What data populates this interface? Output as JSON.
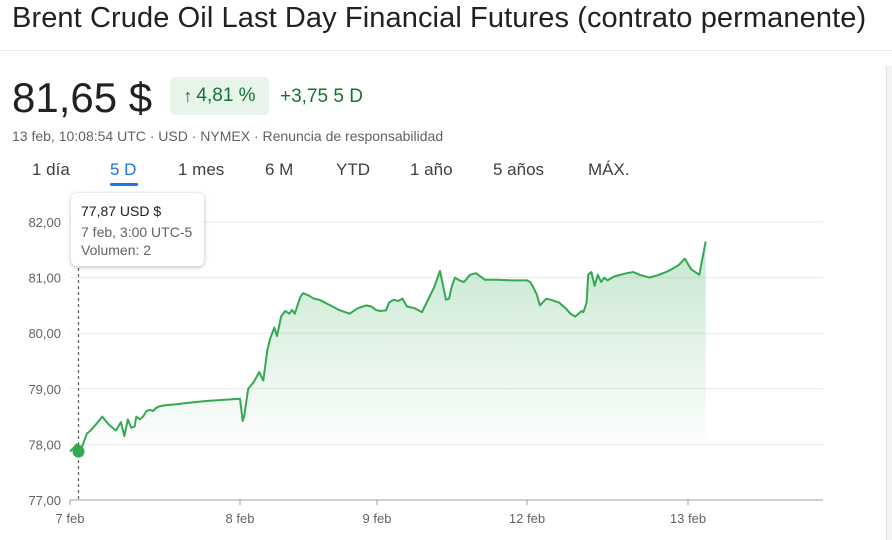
{
  "header": {
    "title": "Brent Crude Oil Last Day Financial Futures (contrato permanente)"
  },
  "quote": {
    "price": "81,65 $",
    "change_pct": "4,81 %",
    "change_abs": "+3,75 5 D",
    "meta": "13 feb, 10:08:54 UTC · USD · NYMEX · Renuncia de responsabilidad",
    "up_color": "#137333"
  },
  "tabs": [
    {
      "label": "1 día"
    },
    {
      "label": "5 D",
      "active": true
    },
    {
      "label": "1 mes"
    },
    {
      "label": "6 M"
    },
    {
      "label": "YTD"
    },
    {
      "label": "1 año"
    },
    {
      "label": "5 años"
    },
    {
      "label": "MÁX."
    }
  ],
  "tooltip": {
    "price": "77,87 USD $",
    "time": "7 feb, 3:00 UTC-5",
    "volume": "Volumen: 2"
  },
  "chart_data": {
    "type": "area",
    "ylim": [
      77,
      82
    ],
    "y_ticks": [
      "82,00",
      "81,00",
      "80,00",
      "79,00",
      "78,00",
      "77,00"
    ],
    "y_tick_values": [
      82,
      81,
      80,
      79,
      78,
      77
    ],
    "x_ticks": [
      "7 feb",
      "8 feb",
      "9 feb",
      "12 feb",
      "13 feb"
    ],
    "x_tick_positions": [
      0,
      1,
      2,
      3,
      4
    ],
    "x_max": 4.85,
    "line_color": "#34a853",
    "grid": true,
    "hover_point": {
      "x": 0.05,
      "y": 77.87
    },
    "x": [
      0,
      0.04,
      0.07,
      0.1,
      0.11,
      0.13,
      0.15,
      0.19,
      0.23,
      0.27,
      0.3,
      0.32,
      0.34,
      0.36,
      0.38,
      0.39,
      0.41,
      0.43,
      0.45,
      0.47,
      0.49,
      0.5,
      0.52,
      0.55,
      0.58,
      0.62,
      0.7,
      0.8,
      1.0,
      1.02,
      1.03,
      1.06,
      1.1,
      1.14,
      1.17,
      1.2,
      1.22,
      1.25,
      1.27,
      1.3,
      1.33,
      1.36,
      1.38,
      1.4,
      1.42,
      1.44,
      1.46,
      1.5,
      1.54,
      1.58,
      1.62,
      1.66,
      1.72,
      1.8,
      1.86,
      1.92,
      1.96,
      1.99,
      2.02,
      2.06,
      2.08,
      2.11,
      2.14,
      2.17,
      2.2,
      2.25,
      2.3,
      2.34,
      2.38,
      2.42,
      2.46,
      2.48,
      2.5,
      2.52,
      2.55,
      2.58,
      2.62,
      2.66,
      2.72,
      2.8,
      2.9,
      3.0,
      3.02,
      3.04,
      3.06,
      3.08,
      3.12,
      3.15,
      3.2,
      3.24,
      3.27,
      3.3,
      3.32,
      3.34,
      3.35,
      3.37,
      3.38,
      3.4,
      3.42,
      3.44,
      3.46,
      3.48,
      3.5,
      3.54,
      3.58,
      3.62,
      3.66,
      3.7,
      3.76,
      3.82,
      3.88,
      3.94,
      3.98,
      4.02,
      4.07,
      4.11
    ],
    "values": [
      77.87,
      78.0,
      77.95,
      78.2,
      78.22,
      78.28,
      78.35,
      78.5,
      78.35,
      78.25,
      78.4,
      78.15,
      78.45,
      78.3,
      78.32,
      78.5,
      78.45,
      78.5,
      78.6,
      78.62,
      78.6,
      78.64,
      78.68,
      78.7,
      78.71,
      78.72,
      78.75,
      78.78,
      78.82,
      78.42,
      78.5,
      79.0,
      79.12,
      79.3,
      79.15,
      79.7,
      79.9,
      80.1,
      79.95,
      80.3,
      80.4,
      80.35,
      80.42,
      80.35,
      80.5,
      80.65,
      80.72,
      80.68,
      80.62,
      80.6,
      80.55,
      80.5,
      80.42,
      80.35,
      80.45,
      80.5,
      80.48,
      80.42,
      80.4,
      80.41,
      80.55,
      80.6,
      80.58,
      80.62,
      80.48,
      80.45,
      80.38,
      80.6,
      80.82,
      81.12,
      80.6,
      80.62,
      80.85,
      81.0,
      80.95,
      80.92,
      81.05,
      81.08,
      80.96,
      80.96,
      80.95,
      80.95,
      80.92,
      80.82,
      80.7,
      80.5,
      80.62,
      80.6,
      80.55,
      80.45,
      80.35,
      80.3,
      80.35,
      80.4,
      80.38,
      80.55,
      81.05,
      81.1,
      80.85,
      81.05,
      80.92,
      81.0,
      80.95,
      81.02,
      81.05,
      81.08,
      81.1,
      81.05,
      81.0,
      81.05,
      81.12,
      81.22,
      81.34,
      81.15,
      81.05,
      81.65
    ]
  }
}
